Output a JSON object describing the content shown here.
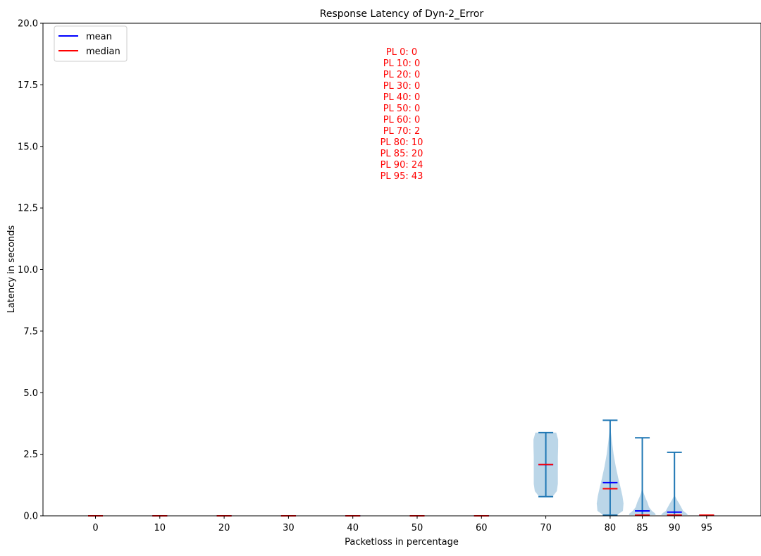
{
  "chart_data": {
    "type": "violin",
    "title": "Response Latency of Dyn-2_Error",
    "xlabel": "Packetloss in percentage",
    "ylabel": "Latency in seconds",
    "ylim": [
      0,
      20
    ],
    "yticks": [
      "0.0",
      "2.5",
      "5.0",
      "7.5",
      "10.0",
      "12.5",
      "15.0",
      "17.5",
      "20.0"
    ],
    "grid": false,
    "legend": {
      "placement": "top-left",
      "entries": [
        {
          "label": "mean",
          "color": "#0000ff"
        },
        {
          "label": "median",
          "color": "#ff0000"
        }
      ]
    },
    "colors": {
      "body": "#1f77b4",
      "mean": "#0000ff",
      "median": "#ff0000",
      "annotation": "#ff0000"
    },
    "annotation_lines": [
      "PL 0: 0",
      "PL 10: 0",
      "PL 20: 0",
      "PL 30: 0",
      "PL 40: 0",
      "PL 50: 0",
      "PL 60: 0",
      "PL 70: 2",
      "PL 80: 10",
      "PL 85: 20",
      "PL 90: 24",
      "PL 95: 43"
    ],
    "groups": [
      {
        "label": "0",
        "x": 0,
        "min": 0,
        "max": 0,
        "mean": 0,
        "median": 0,
        "violin": false
      },
      {
        "label": "10",
        "x": 10,
        "min": 0,
        "max": 0,
        "mean": 0,
        "median": 0,
        "violin": false
      },
      {
        "label": "20",
        "x": 20,
        "min": 0,
        "max": 0,
        "mean": 0,
        "median": 0,
        "violin": false
      },
      {
        "label": "30",
        "x": 30,
        "min": 0,
        "max": 0,
        "mean": 0,
        "median": 0,
        "violin": false
      },
      {
        "label": "40",
        "x": 40,
        "min": 0,
        "max": 0,
        "mean": 0,
        "median": 0,
        "violin": false
      },
      {
        "label": "50",
        "x": 50,
        "min": 0,
        "max": 0,
        "mean": 0,
        "median": 0,
        "violin": false
      },
      {
        "label": "60",
        "x": 60,
        "min": 0,
        "max": 0,
        "mean": 0,
        "median": 0,
        "violin": false
      },
      {
        "label": "70",
        "x": 70,
        "min": 0.78,
        "max": 3.38,
        "mean": 2.08,
        "median": 2.08,
        "violin": true,
        "density": [
          [
            0.78,
            0.5
          ],
          [
            1.0,
            0.82
          ],
          [
            1.3,
            0.9
          ],
          [
            1.6,
            0.9
          ],
          [
            2.0,
            0.9
          ],
          [
            2.4,
            0.9
          ],
          [
            2.8,
            0.92
          ],
          [
            3.1,
            0.92
          ],
          [
            3.38,
            0.78
          ]
        ]
      },
      {
        "label": "80",
        "x": 80,
        "min": 0.03,
        "max": 3.88,
        "mean": 1.35,
        "median": 1.1,
        "violin": true,
        "density": [
          [
            0.03,
            0.5
          ],
          [
            0.2,
            0.95
          ],
          [
            0.5,
            1.0
          ],
          [
            0.8,
            0.92
          ],
          [
            1.1,
            0.8
          ],
          [
            1.5,
            0.62
          ],
          [
            2.0,
            0.42
          ],
          [
            2.5,
            0.26
          ],
          [
            3.0,
            0.14
          ],
          [
            3.4,
            0.06
          ],
          [
            3.88,
            0.02
          ]
        ]
      },
      {
        "label": "85",
        "x": 85,
        "min": 0.03,
        "max": 3.17,
        "mean": 0.2,
        "median": 0.03,
        "violin": true,
        "density": [
          [
            0.03,
            1.0
          ],
          [
            0.1,
            0.95
          ],
          [
            0.2,
            0.72
          ],
          [
            0.35,
            0.5
          ],
          [
            0.55,
            0.38
          ],
          [
            0.75,
            0.22
          ],
          [
            0.95,
            0.08
          ],
          [
            1.15,
            0.02
          ],
          [
            1.6,
            0.0
          ],
          [
            3.17,
            0.0
          ]
        ]
      },
      {
        "label": "90",
        "x": 90,
        "min": 0.03,
        "max": 2.58,
        "mean": 0.15,
        "median": 0.03,
        "violin": true,
        "density": [
          [
            0.03,
            1.0
          ],
          [
            0.1,
            0.9
          ],
          [
            0.2,
            0.65
          ],
          [
            0.35,
            0.5
          ],
          [
            0.5,
            0.35
          ],
          [
            0.65,
            0.18
          ],
          [
            0.8,
            0.04
          ],
          [
            1.2,
            0.0
          ],
          [
            2.58,
            0.0
          ]
        ]
      },
      {
        "label": "95",
        "x": 95,
        "min": 0.03,
        "max": 0.03,
        "mean": 0.03,
        "median": 0.03,
        "violin": false
      }
    ]
  }
}
